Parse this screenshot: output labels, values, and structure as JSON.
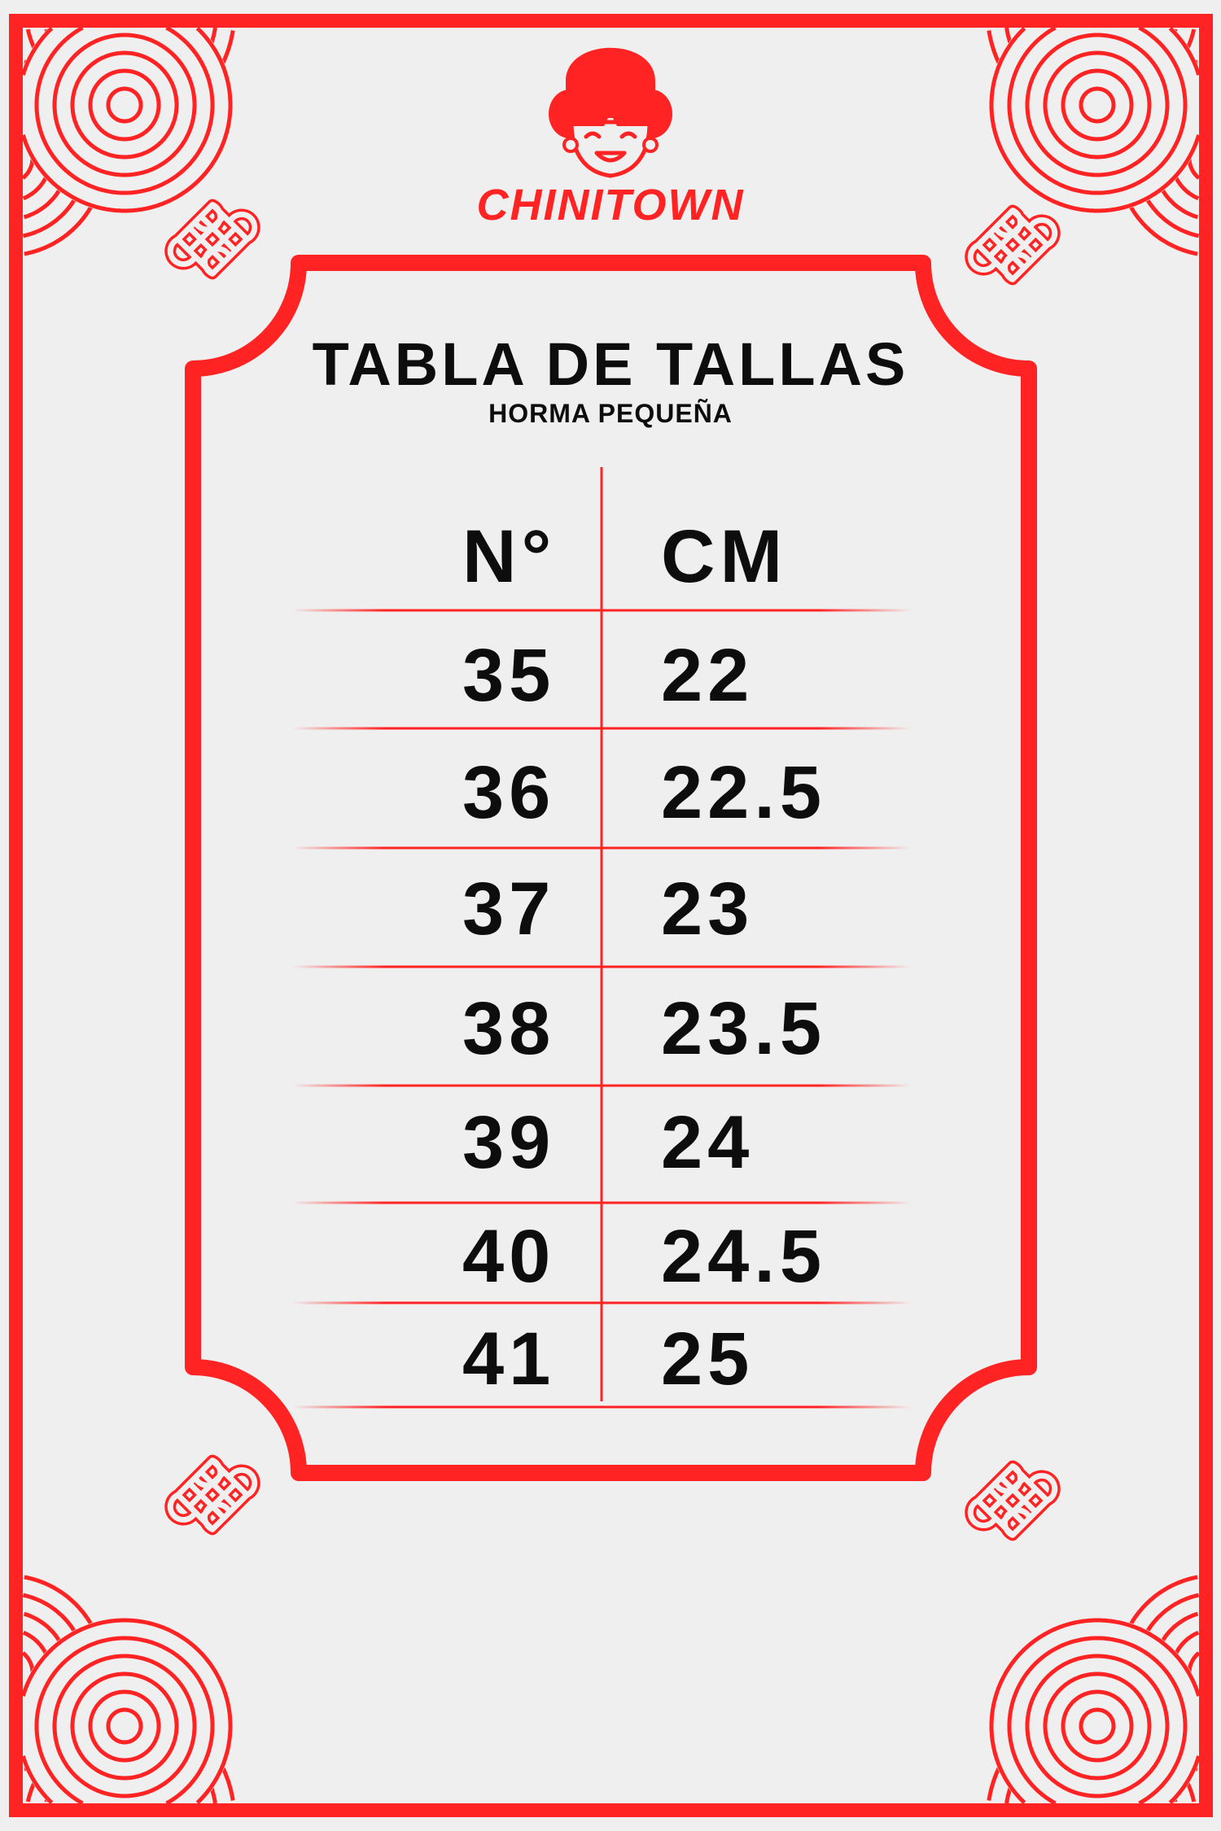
{
  "brand": {
    "name": "CHINITOWN",
    "color": "#ff2323"
  },
  "colors": {
    "accent": "#ff2323",
    "background": "#efefef",
    "text": "#0d0d0d"
  },
  "title": "TABLA DE TALLAS",
  "subtitle": "HORMA PEQUEÑA",
  "table": {
    "headers": [
      "N°",
      "CM"
    ],
    "rows": [
      [
        "35",
        "22"
      ],
      [
        "36",
        "22.5"
      ],
      [
        "37",
        "23"
      ],
      [
        "38",
        "23.5"
      ],
      [
        "39",
        "24"
      ],
      [
        "40",
        "24.5"
      ],
      [
        "41",
        "25"
      ]
    ]
  },
  "decorations": {
    "corners": "seigaiha-wave-icon",
    "knots": "endless-knot-icon"
  }
}
